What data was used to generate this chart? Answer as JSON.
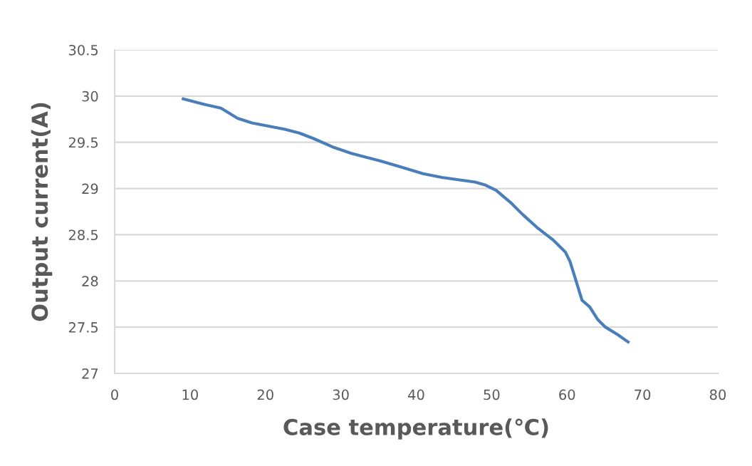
{
  "chart_data": {
    "type": "line",
    "xlabel": "Case temperature(℃)",
    "ylabel": "Output current(A)",
    "x": [
      9.1,
      11.9,
      14.1,
      16.3,
      18.2,
      22.6,
      24.5,
      26.4,
      28.9,
      31.4,
      35.2,
      37.7,
      40.9,
      43.4,
      47.8,
      49.1,
      50.6,
      52.5,
      54.1,
      56.0,
      58.2,
      59.8,
      60.4,
      61.2,
      62.0,
      63.0,
      64.1,
      65.1,
      66.7,
      68.1
    ],
    "series": [
      {
        "color": "#4a7ebb",
        "values": [
          29.97,
          29.91,
          29.87,
          29.76,
          29.71,
          29.64,
          29.6,
          29.54,
          29.45,
          29.38,
          29.3,
          29.24,
          29.16,
          29.12,
          29.07,
          29.04,
          28.98,
          28.85,
          28.72,
          28.58,
          28.44,
          28.31,
          28.21,
          28.0,
          27.79,
          27.72,
          27.58,
          27.5,
          27.42,
          27.34
        ]
      }
    ],
    "xlim": [
      0,
      80
    ],
    "xticks": [
      0,
      10,
      20,
      30,
      40,
      50,
      60,
      70,
      80
    ],
    "ylim": [
      27,
      30.5
    ],
    "yticks": [
      27,
      27.5,
      28,
      28.5,
      29,
      29.5,
      30,
      30.5
    ],
    "grid": "y",
    "legend": false,
    "marker": "none",
    "line_style": "solid"
  }
}
